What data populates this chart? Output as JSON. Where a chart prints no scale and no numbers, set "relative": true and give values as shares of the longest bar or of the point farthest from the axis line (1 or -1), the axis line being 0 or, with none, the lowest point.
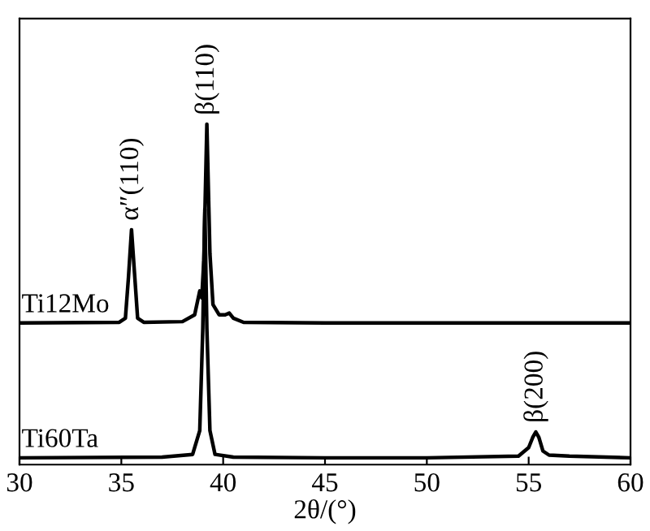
{
  "chart_data": {
    "type": "line",
    "relative": true,
    "xlabel": "2θ/(°)",
    "xlim": [
      30,
      60
    ],
    "xticks": [
      30,
      35,
      40,
      45,
      50,
      55,
      60
    ],
    "grid": false,
    "legend": false,
    "marker": "none",
    "line_style": "solid",
    "series": [
      {
        "name": "Ti12Mo",
        "color": "#000000",
        "x": [
          30,
          34.9,
          35.2,
          35.35,
          35.5,
          35.65,
          35.8,
          36.1,
          38.0,
          38.6,
          38.85,
          38.95,
          39.05,
          39.2,
          39.35,
          39.5,
          39.8,
          40.1,
          40.3,
          40.5,
          41,
          45,
          50,
          55,
          60
        ],
        "values": [
          0.416,
          0.418,
          0.43,
          0.55,
          0.69,
          0.56,
          0.43,
          0.418,
          0.42,
          0.44,
          0.51,
          0.49,
          0.6,
          1.0,
          0.62,
          0.47,
          0.44,
          0.44,
          0.445,
          0.43,
          0.418,
          0.416,
          0.416,
          0.416,
          0.416
        ]
      },
      {
        "name": "Ti60Ta",
        "color": "#000000",
        "x": [
          30,
          37,
          38.5,
          38.85,
          39.0,
          39.1,
          39.2,
          39.35,
          39.6,
          40.5,
          45,
          50,
          54.5,
          55.0,
          55.2,
          55.35,
          55.5,
          55.7,
          56,
          57,
          60
        ],
        "values": [
          0.02,
          0.022,
          0.03,
          0.1,
          0.4,
          0.75,
          0.4,
          0.1,
          0.03,
          0.022,
          0.02,
          0.02,
          0.025,
          0.05,
          0.08,
          0.096,
          0.08,
          0.04,
          0.028,
          0.025,
          0.02
        ]
      }
    ],
    "annotations": [
      {
        "text": "α″(110)",
        "x": 35.5,
        "y": 0.69
      },
      {
        "text": "β(110)",
        "x": 39.2,
        "y": 1.0
      },
      {
        "text": "β(200)",
        "x": 55.35,
        "y": 0.096
      }
    ]
  }
}
